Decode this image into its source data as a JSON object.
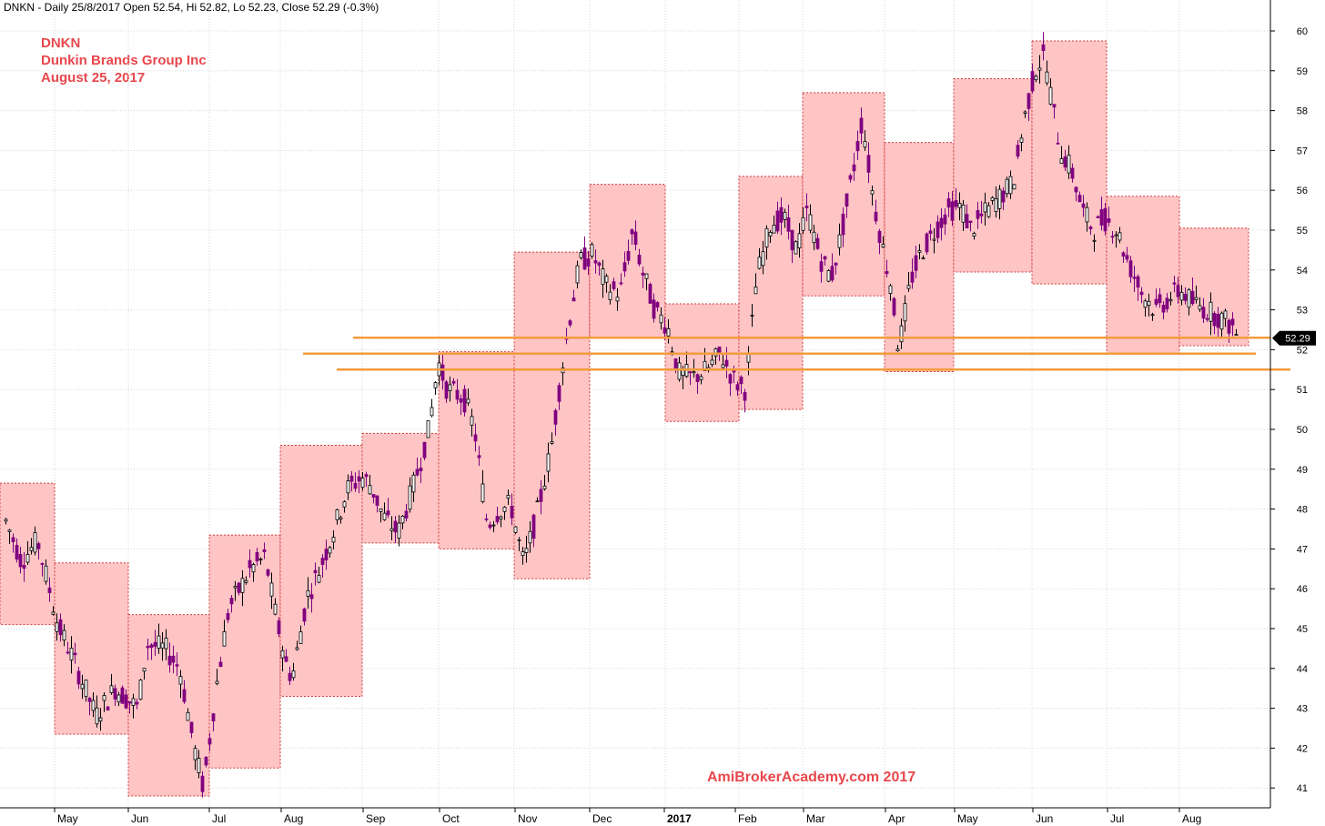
{
  "header": {
    "text": "DNKN - Daily 25/8/2017 Open 52.54, Hi 52.82, Lo 52.23, Close 52.29 (-0.3%)"
  },
  "titles": {
    "ticker": "DNKN",
    "company": "Dunkin Brands Group Inc",
    "date": "August 25, 2017"
  },
  "watermark": "AmiBrokerAcademy.com  2017",
  "chart_data": {
    "type": "candlestick",
    "y_axis": {
      "ticks": [
        41,
        42,
        43,
        44,
        45,
        46,
        47,
        48,
        49,
        50,
        51,
        52,
        53,
        54,
        55,
        56,
        57,
        58,
        59,
        60
      ],
      "range": [
        40.5,
        60.5
      ],
      "position": "right"
    },
    "x_axis": {
      "labels": [
        "May",
        "Jun",
        "Jul",
        "Aug",
        "Sep",
        "Oct",
        "Nov",
        "Dec",
        "2017",
        "Feb",
        "Mar",
        "Apr",
        "May",
        "Jun",
        "Jul",
        "Aug"
      ],
      "bold_labels": [
        "2017"
      ],
      "span": "April 2016 - August 2017"
    },
    "last_close": {
      "value": 52.29,
      "label": "52.29"
    },
    "monthly_boxes": [
      {
        "month": "Apr 2016",
        "low": 45.1,
        "high": 48.65
      },
      {
        "month": "May 2016",
        "low": 42.35,
        "high": 46.65
      },
      {
        "month": "Jun 2016",
        "low": 40.8,
        "high": 45.35
      },
      {
        "month": "Jul 2016",
        "low": 41.5,
        "high": 47.35
      },
      {
        "month": "Aug 2016",
        "low": 43.3,
        "high": 49.6
      },
      {
        "month": "Sep 2016",
        "low": 47.15,
        "high": 49.9
      },
      {
        "month": "Oct 2016",
        "low": 47.0,
        "high": 51.95
      },
      {
        "month": "Nov 2016",
        "low": 46.25,
        "high": 54.45
      },
      {
        "month": "Dec 2016",
        "low": 52.3,
        "high": 56.15
      },
      {
        "month": "Jan 2017",
        "low": 50.2,
        "high": 53.15
      },
      {
        "month": "Feb 2017",
        "low": 50.5,
        "high": 56.35
      },
      {
        "month": "Mar 2017",
        "low": 53.35,
        "high": 58.45
      },
      {
        "month": "Apr 2017",
        "low": 51.45,
        "high": 57.2
      },
      {
        "month": "May 2017",
        "low": 53.95,
        "high": 58.8
      },
      {
        "month": "Jun 2017",
        "low": 53.65,
        "high": 59.75
      },
      {
        "month": "Jul 2017",
        "low": 51.9,
        "high": 55.85
      },
      {
        "month": "Aug 2017",
        "low": 52.1,
        "high": 55.05
      }
    ],
    "support_lines": [
      {
        "price": 52.3,
        "from": "Sep 2016",
        "to": "Aug 2017"
      },
      {
        "price": 51.9,
        "from": "Sep 2016",
        "to": "Aug 2017"
      },
      {
        "price": 51.5,
        "from": "Sep 2016",
        "to": "Aug 2017"
      }
    ],
    "daily_path": [
      [
        0,
        48.0
      ],
      [
        22,
        46.7
      ],
      [
        40,
        47.2
      ],
      [
        62,
        45.1
      ],
      [
        78,
        44.3
      ],
      [
        104,
        42.8
      ],
      [
        125,
        43.5
      ],
      [
        150,
        43.0
      ],
      [
        160,
        44.6
      ],
      [
        180,
        44.5
      ],
      [
        196,
        44.0
      ],
      [
        212,
        42.0
      ],
      [
        222,
        41.0
      ],
      [
        236,
        43.5
      ],
      [
        250,
        45.5
      ],
      [
        262,
        46.0
      ],
      [
        274,
        46.5
      ],
      [
        290,
        46.8
      ],
      [
        300,
        45.5
      ],
      [
        314,
        44.0
      ],
      [
        320,
        43.8
      ],
      [
        336,
        45.8
      ],
      [
        350,
        46.5
      ],
      [
        366,
        47.5
      ],
      [
        380,
        48.5
      ],
      [
        396,
        48.8
      ],
      [
        406,
        48.6
      ],
      [
        420,
        47.8
      ],
      [
        436,
        47.4
      ],
      [
        452,
        48.5
      ],
      [
        470,
        50.0
      ],
      [
        480,
        51.7
      ],
      [
        490,
        51.0
      ],
      [
        508,
        50.8
      ],
      [
        520,
        50.0
      ],
      [
        534,
        47.6
      ],
      [
        548,
        48.0
      ],
      [
        560,
        48.1
      ],
      [
        574,
        46.6
      ],
      [
        590,
        48.0
      ],
      [
        604,
        49.5
      ],
      [
        616,
        51.5
      ],
      [
        626,
        53.0
      ],
      [
        636,
        54.2
      ],
      [
        650,
        54.4
      ],
      [
        664,
        53.6
      ],
      [
        680,
        53.4
      ],
      [
        694,
        55.0
      ],
      [
        704,
        54.0
      ],
      [
        718,
        53.0
      ],
      [
        732,
        52.6
      ],
      [
        744,
        51.4
      ],
      [
        760,
        51.3
      ],
      [
        776,
        51.5
      ],
      [
        790,
        51.9
      ],
      [
        806,
        51.2
      ],
      [
        818,
        51.0
      ],
      [
        830,
        53.8
      ],
      [
        846,
        55.2
      ],
      [
        860,
        55.3
      ],
      [
        874,
        54.5
      ],
      [
        886,
        55.5
      ],
      [
        900,
        54.3
      ],
      [
        912,
        53.8
      ],
      [
        924,
        55.0
      ],
      [
        936,
        56.5
      ],
      [
        946,
        57.8
      ],
      [
        958,
        55.8
      ],
      [
        970,
        54.4
      ],
      [
        978,
        53.6
      ],
      [
        986,
        52.0
      ],
      [
        1000,
        53.8
      ],
      [
        1012,
        54.5
      ],
      [
        1026,
        55.0
      ],
      [
        1040,
        55.5
      ],
      [
        1054,
        55.6
      ],
      [
        1066,
        55.0
      ],
      [
        1080,
        55.4
      ],
      [
        1096,
        55.8
      ],
      [
        1112,
        56.2
      ],
      [
        1126,
        58.0
      ],
      [
        1136,
        59.0
      ],
      [
        1146,
        59.4
      ],
      [
        1156,
        58.0
      ],
      [
        1164,
        57.0
      ],
      [
        1176,
        56.5
      ],
      [
        1188,
        55.5
      ],
      [
        1200,
        55.0
      ],
      [
        1212,
        55.3
      ],
      [
        1226,
        55.0
      ],
      [
        1238,
        54.2
      ],
      [
        1254,
        53.4
      ],
      [
        1268,
        53.0
      ],
      [
        1284,
        53.3
      ],
      [
        1296,
        53.5
      ],
      [
        1308,
        53.2
      ],
      [
        1324,
        53.0
      ],
      [
        1340,
        52.8
      ],
      [
        1352,
        52.6
      ],
      [
        1360,
        52.3
      ]
    ]
  },
  "colors": {
    "box_fill": "#ffbfbf",
    "box_border": "#d03a3a",
    "candle_up": "#000000",
    "candle_down": "#800080",
    "support_line": "#f39c3c",
    "title_text": "#e8474c",
    "grid": "#d8d8d8",
    "axis": "#000000",
    "price_marker": "#000000"
  }
}
